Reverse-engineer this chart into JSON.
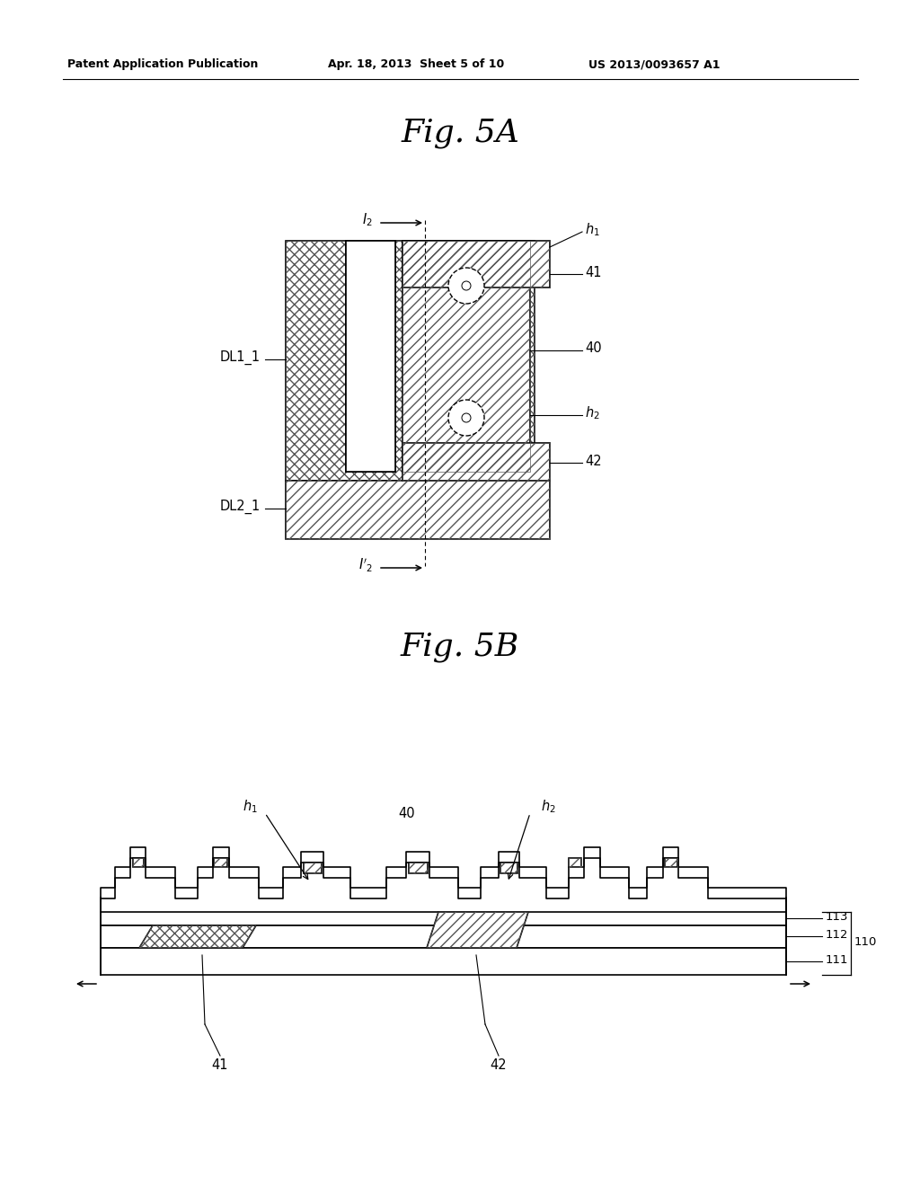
{
  "bg_color": "#ffffff",
  "lc": "#000000",
  "header_left": "Patent Application Publication",
  "header_mid": "Apr. 18, 2013  Sheet 5 of 10",
  "header_right": "US 2013/0093657 A1",
  "fig5a_title": "Fig. 5A",
  "fig5b_title": "Fig. 5B",
  "lw": 1.2
}
